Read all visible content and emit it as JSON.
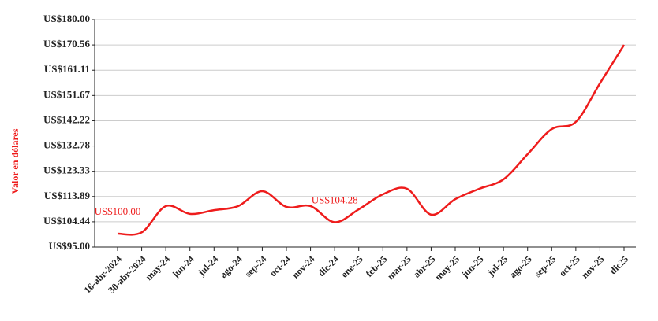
{
  "chart_data": {
    "type": "line",
    "y_label": "Valor en dólares",
    "categories": [
      "16-abr-2024",
      "30-abr-2024",
      "may-24",
      "jun-24",
      "jul-24",
      "ago-24",
      "sep-24",
      "oct-24",
      "nov-24",
      "dic-24",
      "ene-25",
      "feb-25",
      "mar-25",
      "abr-25",
      "may-25",
      "jun-25",
      "jul-25",
      "ago-25",
      "sep-25",
      "oct-25",
      "nov-25",
      "dic25"
    ],
    "values": [
      100,
      100.5,
      110.3,
      107.4,
      108.8,
      110.3,
      115.9,
      110,
      110.3,
      104.28,
      109.1,
      114.7,
      116.8,
      107.1,
      112.9,
      116.8,
      120.3,
      129.7,
      139.1,
      141.8,
      156.2,
      170.56
    ],
    "value_labels": [
      "US$100.00",
      null,
      null,
      null,
      null,
      null,
      null,
      null,
      null,
      "US$104.28",
      null,
      null,
      null,
      null,
      null,
      null,
      null,
      null,
      null,
      null,
      null,
      null
    ],
    "color": "#ee1c1c",
    "ylim": [
      95,
      180
    ],
    "yticks": [
      {
        "value": 95,
        "label": "US$95.00"
      },
      {
        "value": 104.44,
        "label": "US$104.44"
      },
      {
        "value": 113.89,
        "label": "US$113.89"
      },
      {
        "value": 123.33,
        "label": "US$123.33"
      },
      {
        "value": 132.78,
        "label": "US$132.78"
      },
      {
        "value": 142.22,
        "label": "US$142.22"
      },
      {
        "value": 151.67,
        "label": "US$151.67"
      },
      {
        "value": 161.11,
        "label": "US$161.11"
      },
      {
        "value": 170.56,
        "label": "US$170.56"
      },
      {
        "value": 180,
        "label": "US$180.00"
      }
    ],
    "grid": true
  }
}
